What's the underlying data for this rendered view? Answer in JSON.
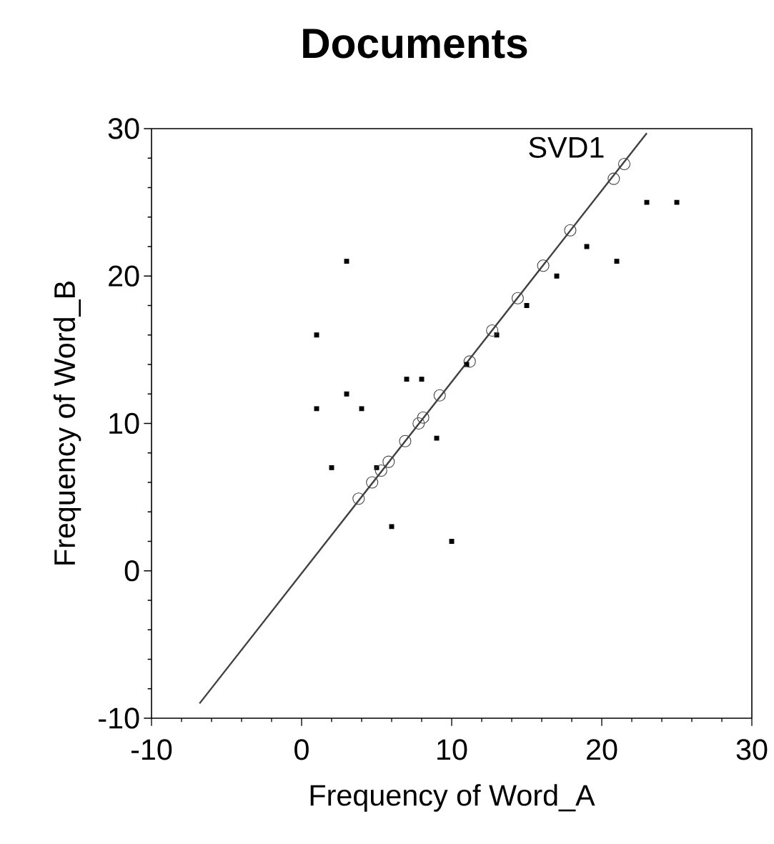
{
  "chart_data": {
    "type": "scatter",
    "title": "Documents",
    "xlabel": "Frequency of Word_A",
    "ylabel": "Frequency of Word_B",
    "xlim": [
      -10,
      30
    ],
    "ylim": [
      -10,
      30
    ],
    "xticks": [
      -10,
      0,
      10,
      20,
      30
    ],
    "yticks": [
      -10,
      0,
      10,
      20,
      30
    ],
    "grid": false,
    "legend": false,
    "series": [
      {
        "marker": "square",
        "color": "#000000",
        "x": [
          1,
          3,
          1,
          3,
          4,
          2,
          5,
          7,
          8,
          9,
          6,
          10,
          11,
          13,
          15,
          17,
          19,
          21,
          23,
          25
        ],
        "values": [
          16,
          21,
          11,
          12,
          11,
          7,
          7,
          13,
          13,
          9,
          3,
          2,
          14,
          16,
          18,
          20,
          22,
          21,
          25,
          25
        ]
      },
      {
        "marker": "circle",
        "color": "#404040",
        "x": [
          3.8,
          4.7,
          5.3,
          5.8,
          6.9,
          7.8,
          8.1,
          9.2,
          11.2,
          12.7,
          14.4,
          16.1,
          17.9,
          20.8,
          21.5
        ],
        "values": [
          4.9,
          6.0,
          6.8,
          7.4,
          8.8,
          10.0,
          10.4,
          11.9,
          14.2,
          16.3,
          18.5,
          20.7,
          23.1,
          26.6,
          27.6
        ]
      },
      {
        "type": "line",
        "name": "SVD1",
        "marker": "none",
        "line_style": "solid",
        "color": "#404040",
        "x": [
          -6.8,
          23.0
        ],
        "values": [
          -9.0,
          29.7
        ]
      }
    ]
  }
}
